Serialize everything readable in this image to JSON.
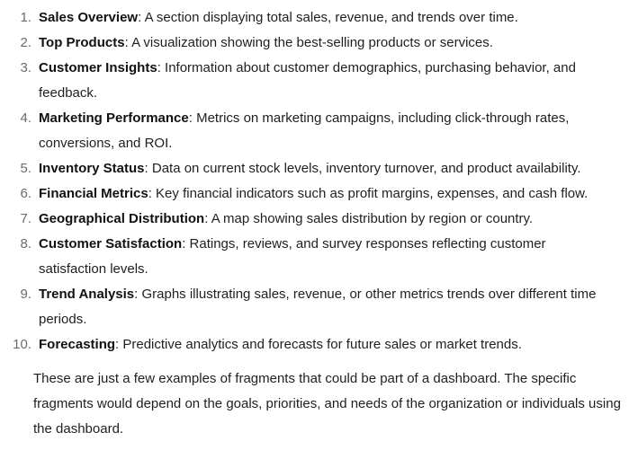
{
  "items": [
    {
      "number": "1.",
      "title": "Sales Overview",
      "description": ": A section displaying total sales, revenue, and trends over time."
    },
    {
      "number": "2.",
      "title": "Top Products",
      "description": ": A visualization showing the best-selling products or services."
    },
    {
      "number": "3.",
      "title": "Customer Insights",
      "description": ": Information about customer demographics, purchasing behavior, and feedback."
    },
    {
      "number": "4.",
      "title": "Marketing Performance",
      "description": ": Metrics on marketing campaigns, including click-through rates, conversions, and ROI."
    },
    {
      "number": "5.",
      "title": "Inventory Status",
      "description": ": Data on current stock levels, inventory turnover, and product availability."
    },
    {
      "number": "6.",
      "title": "Financial Metrics",
      "description": ": Key financial indicators such as profit margins, expenses, and cash flow."
    },
    {
      "number": "7.",
      "title": "Geographical Distribution",
      "description": ": A map showing sales distribution by region or country."
    },
    {
      "number": "8.",
      "title": "Customer Satisfaction",
      "description": ": Ratings, reviews, and survey responses reflecting customer satisfaction levels."
    },
    {
      "number": "9.",
      "title": "Trend Analysis",
      "description": ": Graphs illustrating sales, revenue, or other metrics trends over different time periods."
    },
    {
      "number": "10.",
      "title": "Forecasting",
      "description": ": Predictive analytics and forecasts for future sales or market trends."
    }
  ],
  "summary": "These are just a few examples of fragments that could be part of a dashboard. The specific fragments would depend on the goals, priorities, and needs of the organization or individuals using the dashboard."
}
